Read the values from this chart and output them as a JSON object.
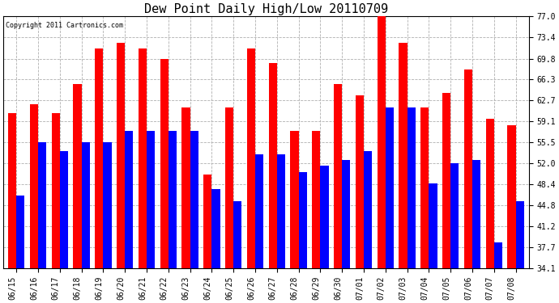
{
  "title": "Dew Point Daily High/Low 20110709",
  "copyright": "Copyright 2011 Cartronics.com",
  "dates": [
    "06/15",
    "06/16",
    "06/17",
    "06/18",
    "06/19",
    "06/20",
    "06/21",
    "06/22",
    "06/23",
    "06/24",
    "06/25",
    "06/26",
    "06/27",
    "06/28",
    "06/29",
    "06/30",
    "07/01",
    "07/02",
    "07/03",
    "07/04",
    "07/05",
    "07/06",
    "07/07",
    "07/08"
  ],
  "highs": [
    60.5,
    62.0,
    60.5,
    65.5,
    71.5,
    72.5,
    71.5,
    69.8,
    61.5,
    50.0,
    61.5,
    71.5,
    69.0,
    57.5,
    57.5,
    65.5,
    63.5,
    77.0,
    72.5,
    61.5,
    64.0,
    68.0,
    59.5,
    58.5
  ],
  "lows": [
    46.5,
    55.5,
    54.0,
    55.5,
    55.5,
    57.5,
    57.5,
    57.5,
    57.5,
    47.5,
    45.5,
    53.5,
    53.5,
    50.5,
    51.5,
    52.5,
    54.0,
    61.5,
    61.5,
    48.5,
    52.0,
    52.5,
    38.5,
    45.5
  ],
  "ymin": 34.1,
  "ymax": 77.0,
  "yticks": [
    34.1,
    37.7,
    41.2,
    44.8,
    48.4,
    52.0,
    55.5,
    59.1,
    62.7,
    66.3,
    69.8,
    73.4,
    77.0
  ],
  "bar_width": 0.38,
  "high_color": "#ff0000",
  "low_color": "#0000ff",
  "bg_color": "#ffffff",
  "grid_color": "#b0b0b0",
  "title_fontsize": 11,
  "tick_fontsize": 7,
  "copyright_fontsize": 6
}
